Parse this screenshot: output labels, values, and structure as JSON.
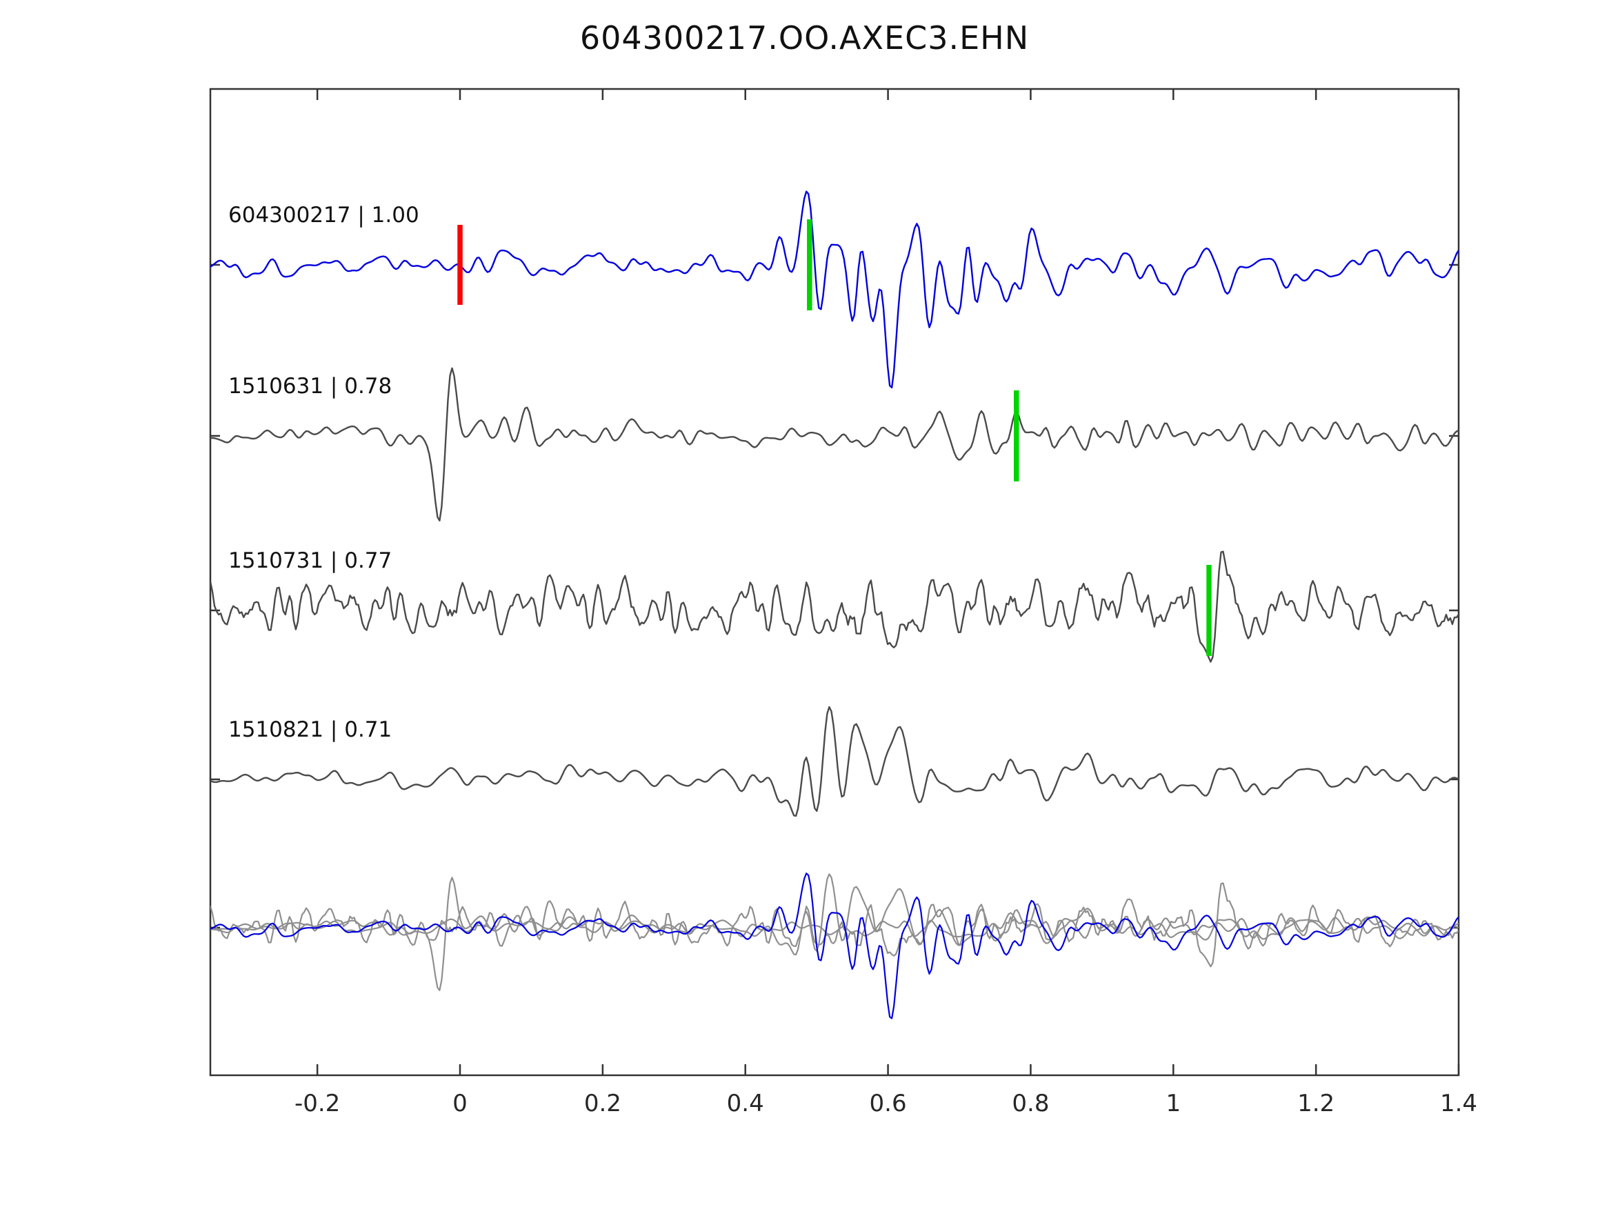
{
  "chart_data": {
    "type": "line",
    "title": "604300217.OO.AXEC3.EHN",
    "xlim": [
      -0.35,
      1.4
    ],
    "xticks": [
      -0.2,
      0,
      0.2,
      0.4,
      0.6,
      0.8,
      1,
      1.2,
      1.4
    ],
    "xtick_labels": [
      "-0.2",
      "0",
      "0.2",
      "0.4",
      "0.6",
      "0.8",
      "1",
      "1.2",
      "1.4"
    ],
    "grid": false,
    "legend": "none",
    "colors": {
      "template_trace": "#0000e0",
      "match_trace": "#4a4a4a",
      "overlay_gray": "#8f8f8f",
      "marker_red": "#ff0000",
      "marker_green": "#00d400",
      "axis": "#333333"
    },
    "traces": [
      {
        "id": "604300217",
        "label": "604300217 | 1.00",
        "correlation": 1.0,
        "role": "template",
        "row": 0,
        "markers": [
          {
            "x": 0.0,
            "color": "marker_red",
            "kind": "template-pick"
          },
          {
            "x": 0.49,
            "color": "marker_green",
            "kind": "detection-pick"
          }
        ],
        "synth": {
          "seed": 101,
          "n": 600,
          "smooth": 6,
          "base": 0.5,
          "bursts": [
            {
              "center": 0.56,
              "width": 0.07,
              "gain": 2.6
            },
            {
              "center": 0.7,
              "width": 0.12,
              "gain": 1.3
            },
            {
              "center": 0.95,
              "width": 0.35,
              "gain": 0.5
            }
          ],
          "spikes": []
        }
      },
      {
        "id": "1510631",
        "label": "1510631 | 0.78",
        "correlation": 0.78,
        "role": "match",
        "row": 1,
        "markers": [
          {
            "x": 0.78,
            "color": "marker_green",
            "kind": "detection-pick"
          }
        ],
        "synth": {
          "seed": 202,
          "n": 600,
          "smooth": 5,
          "base": 0.4,
          "bursts": [
            {
              "center": 0.08,
              "width": 0.1,
              "gain": 0.5
            },
            {
              "center": 0.8,
              "width": 0.12,
              "gain": 0.9
            },
            {
              "center": 1.15,
              "width": 0.3,
              "gain": 0.3
            }
          ],
          "spikes": [
            {
              "x": -0.02,
              "width": 0.013,
              "amp": -2.6
            }
          ]
        }
      },
      {
        "id": "1510731",
        "label": "1510731 | 0.77",
        "correlation": 0.77,
        "role": "match",
        "row": 2,
        "markers": [
          {
            "x": 1.05,
            "color": "marker_green",
            "kind": "detection-pick"
          }
        ],
        "synth": {
          "seed": 303,
          "n": 600,
          "smooth": 2,
          "base": 1.15,
          "bursts": [
            {
              "center": 0.55,
              "width": 0.3,
              "gain": 0.15
            }
          ],
          "spikes": [
            {
              "x": 1.06,
              "width": 0.012,
              "amp": -1.9
            }
          ]
        }
      },
      {
        "id": "1510821",
        "label": "1510821 | 0.71",
        "correlation": 0.71,
        "role": "match",
        "row": 3,
        "markers": [],
        "synth": {
          "seed": 404,
          "n": 600,
          "smooth": 7,
          "base": 0.42,
          "bursts": [
            {
              "center": 0.5,
              "width": 0.055,
              "gain": 2.3
            },
            {
              "center": 0.62,
              "width": 0.07,
              "gain": 1.2
            },
            {
              "center": 0.95,
              "width": 0.35,
              "gain": 0.45
            }
          ],
          "spikes": []
        }
      }
    ],
    "overlay": {
      "row": 4,
      "includes": [
        "1510631",
        "1510731",
        "1510821",
        "604300217"
      ],
      "note": "all matched traces in gray with template trace in blue on top"
    }
  }
}
